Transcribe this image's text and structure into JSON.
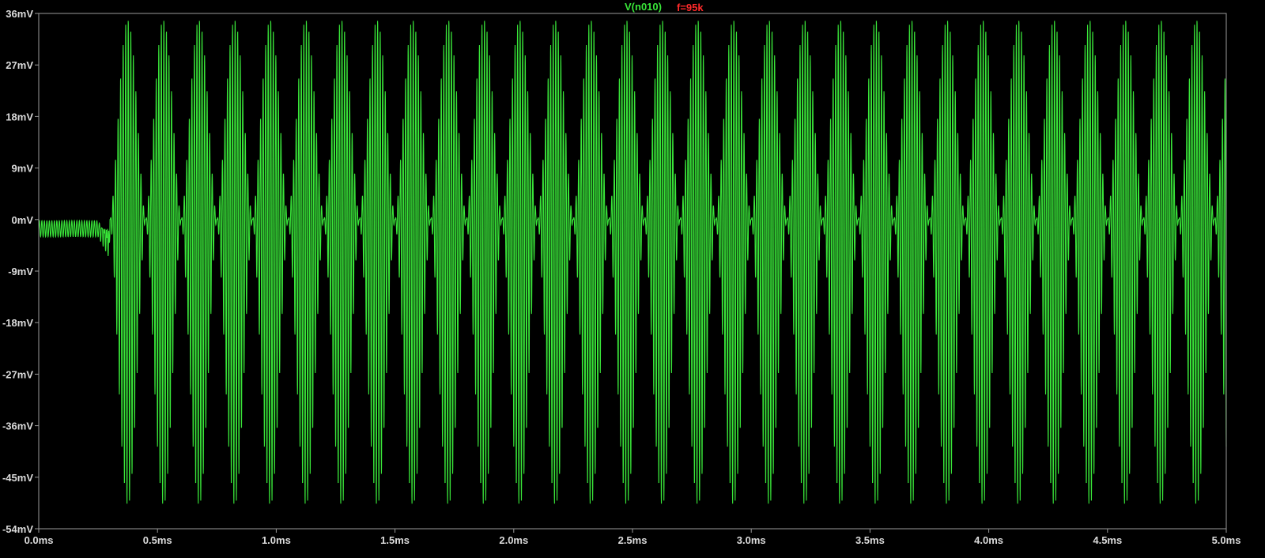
{
  "chart_data": {
    "type": "line",
    "title": "",
    "series": [
      {
        "name": "V(n010)",
        "color": "#39e639",
        "description_points": {
          "x_ms": [
            0.0,
            0.27,
            0.3,
            0.3,
            5.0
          ],
          "envelope": "before 0.3ms: small oscillation between about -3mV and 0mV; after 0.3ms: bursts repeating every ~0.15ms, peaks near +35mV and troughs near -50mV"
        },
        "burst_period_ms": 0.15,
        "burst_start_ms": 0.3,
        "burst_peak_mV": 35,
        "burst_trough_mV": -50,
        "carrier_cycles_per_burst": 7
      }
    ],
    "marker_label": "f=95k",
    "marker_color": "#ff2a2a",
    "xlabel": "",
    "ylabel": "",
    "xlim": [
      0.0,
      5.0
    ],
    "ylim": [
      -54,
      36
    ],
    "x_ticks": [
      {
        "value": 0.0,
        "label": "0.0ms"
      },
      {
        "value": 0.5,
        "label": "0.5ms"
      },
      {
        "value": 1.0,
        "label": "1.0ms"
      },
      {
        "value": 1.5,
        "label": "1.5ms"
      },
      {
        "value": 2.0,
        "label": "2.0ms"
      },
      {
        "value": 2.5,
        "label": "2.5ms"
      },
      {
        "value": 3.0,
        "label": "3.0ms"
      },
      {
        "value": 3.5,
        "label": "3.5ms"
      },
      {
        "value": 4.0,
        "label": "4.0ms"
      },
      {
        "value": 4.5,
        "label": "4.5ms"
      },
      {
        "value": 5.0,
        "label": "5.0ms"
      }
    ],
    "y_ticks": [
      {
        "value": 36,
        "label": "36mV"
      },
      {
        "value": 27,
        "label": "27mV"
      },
      {
        "value": 18,
        "label": "18mV"
      },
      {
        "value": 9,
        "label": "9mV"
      },
      {
        "value": 0,
        "label": "0mV"
      },
      {
        "value": -9,
        "label": "-9mV"
      },
      {
        "value": -18,
        "label": "-18mV"
      },
      {
        "value": -27,
        "label": "-27mV"
      },
      {
        "value": -36,
        "label": "-36mV"
      },
      {
        "value": -45,
        "label": "-45mV"
      },
      {
        "value": -54,
        "label": "-54mV"
      }
    ],
    "grid": false,
    "background": "#000000",
    "axis_color": "#9a9a9a",
    "label_color": "#dcdcdc"
  }
}
